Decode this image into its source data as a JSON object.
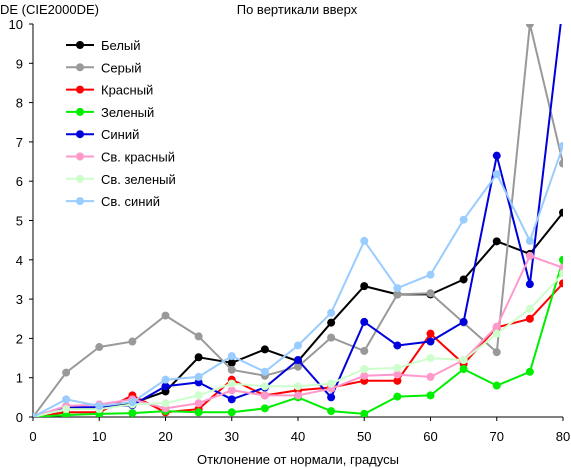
{
  "chart_data": {
    "type": "line",
    "title": "По вертикали вверх",
    "ylabel": "DE (CIE2000DE)",
    "xlabel": "Отклонение от нормали, градусы",
    "xlim": [
      0,
      80
    ],
    "ylim": [
      0,
      10
    ],
    "xticks": [
      0,
      10,
      20,
      30,
      40,
      50,
      60,
      70,
      80
    ],
    "yticks": [
      0,
      1,
      2,
      3,
      4,
      5,
      6,
      7,
      8,
      9,
      10
    ],
    "grid": false,
    "legend_position": "top-left",
    "x": [
      0,
      5,
      10,
      15,
      20,
      25,
      30,
      35,
      40,
      45,
      50,
      55,
      60,
      65,
      70,
      75,
      80
    ],
    "series": [
      {
        "name": "Белый",
        "color": "#000000",
        "values": [
          0,
          0.2,
          0.25,
          0.35,
          0.65,
          1.52,
          1.38,
          1.72,
          1.42,
          2.4,
          3.33,
          3.12,
          3.12,
          3.5,
          4.47,
          4.15,
          5.2
        ]
      },
      {
        "name": "Серый",
        "color": "#999999",
        "values": [
          0,
          1.13,
          1.78,
          1.92,
          2.58,
          2.05,
          1.2,
          1.05,
          1.28,
          2.02,
          1.68,
          3.12,
          3.15,
          2.4,
          1.65,
          10.0,
          6.45
        ]
      },
      {
        "name": "Красный",
        "color": "#ff0000",
        "values": [
          0,
          0.12,
          0.12,
          0.55,
          0.12,
          0.2,
          0.95,
          0.55,
          0.68,
          0.75,
          0.92,
          0.92,
          2.12,
          1.35,
          2.28,
          2.5,
          3.4
        ]
      },
      {
        "name": "Зеленый",
        "color": "#00ee00",
        "values": [
          0,
          0.05,
          0.08,
          0.1,
          0.15,
          0.12,
          0.12,
          0.22,
          0.5,
          0.15,
          0.08,
          0.52,
          0.55,
          1.22,
          0.8,
          1.15,
          4.0
        ]
      },
      {
        "name": "Синий",
        "color": "#0000dd",
        "values": [
          0,
          0.25,
          0.25,
          0.3,
          0.78,
          0.88,
          0.45,
          0.75,
          1.45,
          0.5,
          2.42,
          1.82,
          1.92,
          2.42,
          6.65,
          3.38,
          10.5
        ]
      },
      {
        "name": "Св. красный",
        "color": "#ff99cc",
        "values": [
          0,
          0.28,
          0.32,
          0.45,
          0.22,
          0.35,
          0.68,
          0.55,
          0.55,
          0.72,
          1.05,
          1.08,
          1.02,
          1.45,
          2.3,
          4.1,
          3.8
        ]
      },
      {
        "name": "Св. зеленый",
        "color": "#ccffcc",
        "values": [
          0,
          0.2,
          0.2,
          0.32,
          0.35,
          0.55,
          0.85,
          0.78,
          0.78,
          0.85,
          1.22,
          1.25,
          1.5,
          1.45,
          2.12,
          2.75,
          3.65
        ]
      },
      {
        "name": "Св. синий",
        "color": "#99ccff",
        "values": [
          0,
          0.45,
          0.28,
          0.38,
          0.95,
          1.02,
          1.55,
          1.15,
          1.82,
          2.65,
          4.48,
          3.28,
          3.62,
          5.02,
          6.18,
          4.48,
          6.9
        ]
      }
    ]
  }
}
